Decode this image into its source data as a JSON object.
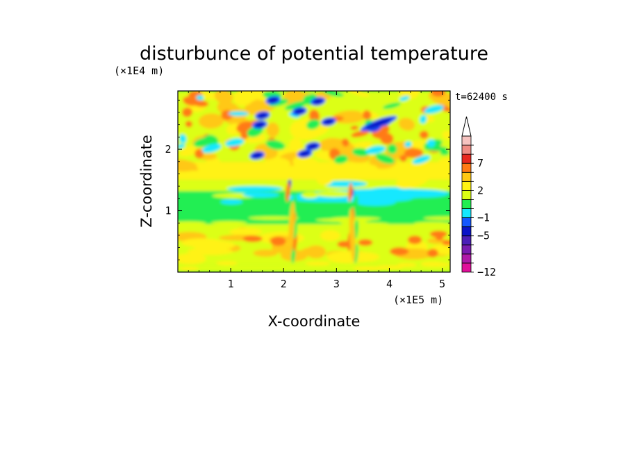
{
  "chart_data": {
    "type": "heatmap",
    "title": "disturbunce of potential temperature",
    "time_label": "t=62400 s",
    "xlabel": "X-coordinate",
    "ylabel": "Z-coordinate",
    "x_scale_label": "(×1E5 m)",
    "y_scale_label": "(×1E4 m)",
    "xlim": [
      0,
      5.15
    ],
    "ylim": [
      0,
      2.95
    ],
    "xticks": [
      1,
      2,
      3,
      4,
      5
    ],
    "yticks": [
      1,
      2
    ],
    "xtick_labels": [
      "1",
      "2",
      "3",
      "4",
      "5"
    ],
    "ytick_labels": [
      "1",
      "2"
    ],
    "colorbar": {
      "levels": [
        -12,
        -10,
        -8,
        -7,
        -5,
        -3,
        -1,
        0,
        1,
        2,
        3,
        5,
        7,
        9,
        11
      ],
      "colors": [
        "#e0109a",
        "#b01aa8",
        "#7a1cb0",
        "#4b1fb8",
        "#0a14c8",
        "#1458ff",
        "#15e8ff",
        "#22ee52",
        "#dcff14",
        "#fff214",
        "#ffc814",
        "#ff7a14",
        "#e8281e",
        "#f08c84",
        "#f6c3c0"
      ],
      "labeled_levels": [
        "-12",
        "-5",
        "-1",
        "2",
        "7"
      ],
      "extend": "max"
    }
  }
}
